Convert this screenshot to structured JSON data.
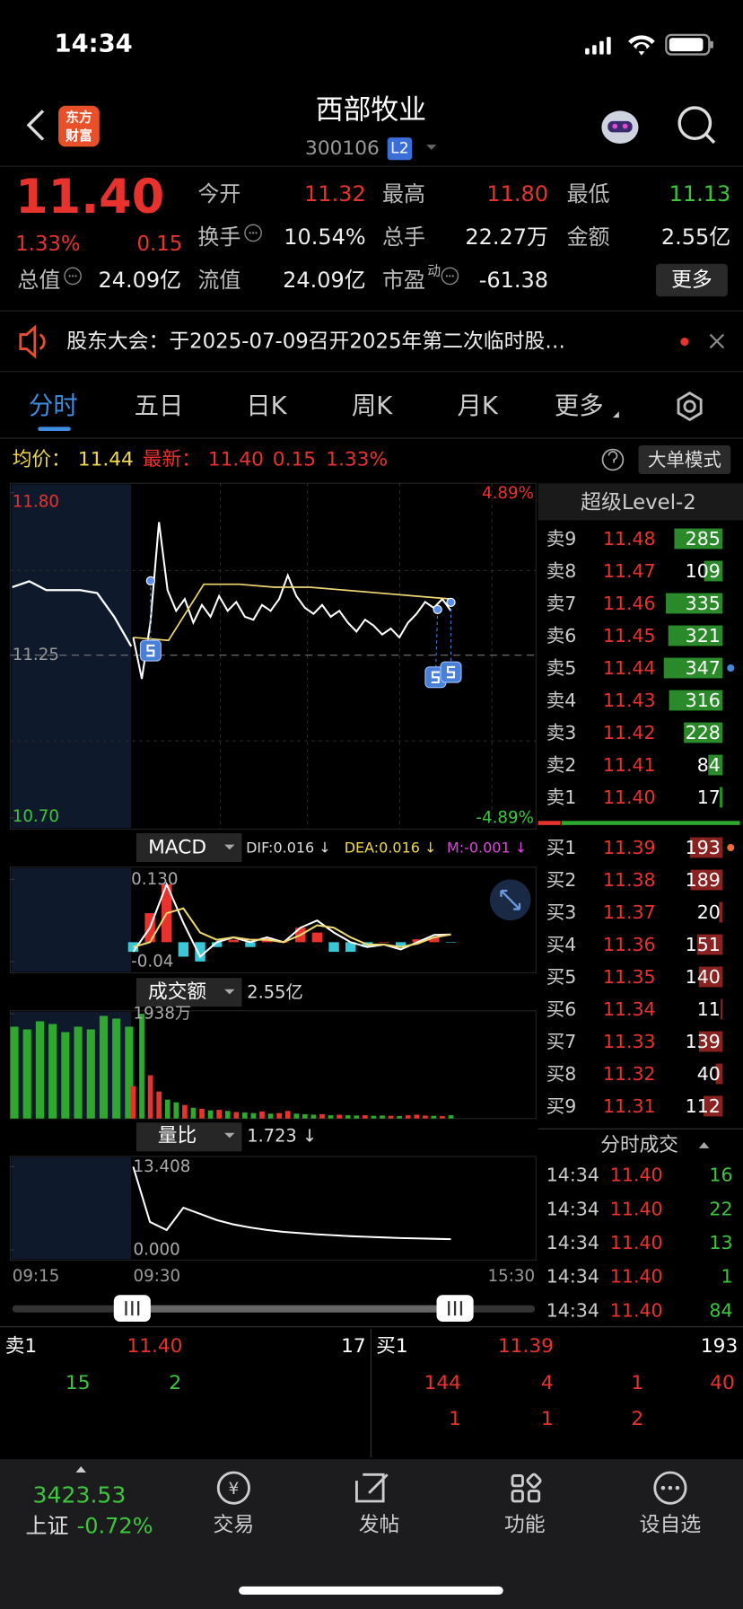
{
  "status": {
    "time": "14:34"
  },
  "header": {
    "logo": [
      "东方",
      "财富"
    ],
    "title": "西部牧业",
    "code": "300106",
    "badge": "L2"
  },
  "quote": {
    "price": "11.40",
    "change_pct": "1.33%",
    "change": "0.15",
    "fields": [
      {
        "label": "今开",
        "value": "11.32",
        "color": "#e8322e"
      },
      {
        "label": "最高",
        "value": "11.80",
        "color": "#e8322e"
      },
      {
        "label": "最低",
        "value": "11.13",
        "color": "#3cc63c"
      },
      {
        "label": "换手",
        "value": "10.54%"
      },
      {
        "label": "总手",
        "value": "22.27万"
      },
      {
        "label": "金额",
        "value": "2.55亿"
      },
      {
        "label": "总值",
        "value": "24.09亿"
      },
      {
        "label": "流值",
        "value": "24.09亿"
      },
      {
        "label": "市盈",
        "sup": "动",
        "value": "-61.38"
      }
    ],
    "more": "更多"
  },
  "notice": {
    "text": "股东大会：于2025-07-09召开2025年第二次临时股…"
  },
  "tabs": [
    "分时",
    "五日",
    "日K",
    "周K",
    "月K",
    "更多"
  ],
  "info": {
    "avg_label": "均价：",
    "avg": "11.44",
    "latest_label": "最新：",
    "latest": "11.40",
    "change": "0.15",
    "change_pct": "1.33%",
    "mode": "大单模式"
  },
  "intraday": {
    "ylim": [
      10.7,
      11.8
    ],
    "yticks": [
      {
        "value": 11.8,
        "label": "11.80"
      },
      11.25,
      {
        "value": 10.7,
        "label": "10.70"
      }
    ],
    "pct_labels": [
      "4.89%",
      "-4.89%"
    ],
    "pre_price": [
      11.48,
      11.5,
      11.47,
      11.47,
      11.47,
      11.46,
      11.38,
      11.28
    ],
    "price": [
      11.31,
      11.17,
      11.36,
      11.7,
      11.47,
      11.4,
      11.44,
      11.36,
      11.42,
      11.38,
      11.45,
      11.4,
      11.43,
      11.38,
      11.37,
      11.42,
      11.4,
      11.44,
      11.52,
      11.45,
      11.41,
      11.39,
      11.42,
      11.38,
      11.4,
      11.36,
      11.33,
      11.37,
      11.35,
      11.32,
      11.34,
      11.31,
      11.36,
      11.39,
      11.43,
      11.41,
      11.44,
      11.4
    ],
    "avg": [
      11.31,
      11.3,
      11.49,
      11.49,
      11.48,
      11.48,
      11.47,
      11.46,
      11.45,
      11.44
    ]
  },
  "times": [
    "09:15",
    "09:30",
    "15:30"
  ],
  "macd": {
    "name": "MACD",
    "dif": "DIF:0.016 ↓",
    "dea": "DEA:0.016 ↓",
    "m": "M:-0.001 ↓",
    "ylim": [
      -0.04,
      0.13
    ],
    "yticks": [
      {
        "value": 0.13,
        "label": "0.130"
      },
      -0.04
    ],
    "dif_values": [
      -0.02,
      0.03,
      0.12,
      0.04,
      -0.03,
      0.0,
      0.01,
      0.0,
      0.01,
      0.0,
      0.03,
      0.045,
      0.02,
      0.0,
      -0.01,
      -0.005,
      -0.015,
      0.0,
      0.015,
      0.016
    ],
    "dea_values": [
      -0.01,
      0.0,
      0.06,
      0.07,
      0.02,
      0.005,
      0.01,
      0.005,
      0.005,
      0.0,
      0.015,
      0.035,
      0.03,
      0.01,
      -0.005,
      -0.005,
      -0.01,
      -0.003,
      0.01,
      0.016
    ],
    "hist": [
      -0.02,
      0.06,
      0.12,
      -0.03,
      -0.04,
      -0.01,
      0.005,
      -0.01,
      0.01,
      0.0,
      0.03,
      0.02,
      -0.02,
      -0.02,
      -0.01,
      0.0,
      -0.01,
      0.006,
      0.01,
      -0.001
    ]
  },
  "turnover": {
    "name": "成交额",
    "total": "2.55亿",
    "ylim": [
      0,
      1938
    ],
    "yticks": [
      {
        "value": 1938,
        "label": "1938万"
      }
    ],
    "pre_values": [
      1700,
      1650,
      1800,
      1750,
      1600,
      1700,
      1650,
      1900,
      1850,
      1700
    ],
    "values": [
      600,
      1938,
      800,
      500,
      350,
      300,
      250,
      200,
      180,
      150,
      160,
      140,
      120,
      110,
      100,
      130,
      90,
      100,
      140,
      90,
      80,
      70,
      80,
      60,
      70,
      60,
      55,
      60,
      50,
      55,
      50,
      45,
      60,
      70,
      55,
      50,
      45,
      60
    ]
  },
  "ratio": {
    "name": "量比",
    "current": "1.723 ↓",
    "ylim": [
      0,
      13.408
    ],
    "yticks": [
      13.408,
      {
        "value": 0,
        "label": "0.000"
      }
    ],
    "values": [
      13.408,
      4.5,
      3.2,
      6.8,
      5.8,
      4.8,
      4.1,
      3.6,
      3.2,
      2.9,
      2.7,
      2.5,
      2.35,
      2.2,
      2.1,
      2.0,
      1.9,
      1.85,
      1.78,
      1.723
    ]
  },
  "orderbook": {
    "title": "超级Level-2",
    "asks": [
      {
        "label": "卖9",
        "price": "11.48",
        "volume": 285
      },
      {
        "label": "卖8",
        "price": "11.47",
        "volume": 109
      },
      {
        "label": "卖7",
        "price": "11.46",
        "volume": 335
      },
      {
        "label": "卖6",
        "price": "11.45",
        "volume": 321
      },
      {
        "label": "卖5",
        "price": "11.44",
        "volume": 347
      },
      {
        "label": "卖4",
        "price": "11.43",
        "volume": 316
      },
      {
        "label": "卖3",
        "price": "11.42",
        "volume": 228
      },
      {
        "label": "卖2",
        "price": "11.41",
        "volume": 84
      },
      {
        "label": "卖1",
        "price": "11.40",
        "volume": 17
      }
    ],
    "bids": [
      {
        "label": "买1",
        "price": "11.39",
        "volume": 193
      },
      {
        "label": "买2",
        "price": "11.38",
        "volume": 189
      },
      {
        "label": "买3",
        "price": "11.37",
        "volume": 20
      },
      {
        "label": "买4",
        "price": "11.36",
        "volume": 151
      },
      {
        "label": "买5",
        "price": "11.35",
        "volume": 140
      },
      {
        "label": "买6",
        "price": "11.34",
        "volume": 11
      },
      {
        "label": "买7",
        "price": "11.33",
        "volume": 139
      },
      {
        "label": "买8",
        "price": "11.32",
        "volume": 40
      },
      {
        "label": "买9",
        "price": "11.31",
        "volume": 112
      }
    ]
  },
  "trades": {
    "title": "分时成交",
    "rows": [
      {
        "time": "14:34",
        "price": "11.40",
        "volume": 16
      },
      {
        "time": "14:34",
        "price": "11.40",
        "volume": 22
      },
      {
        "time": "14:34",
        "price": "11.40",
        "volume": 13
      },
      {
        "time": "14:34",
        "price": "11.40",
        "volume": 1
      },
      {
        "time": "14:34",
        "price": "11.40",
        "volume": 84
      }
    ]
  },
  "queue": {
    "ask": {
      "label": "卖1",
      "price": "11.40",
      "volume": 17,
      "orders": [
        15,
        2
      ]
    },
    "bid": {
      "label": "买1",
      "price": "11.39",
      "volume": 193,
      "orders": [
        144,
        4,
        1,
        40,
        1,
        1,
        2
      ]
    }
  },
  "nav": {
    "index_value": "3423.53",
    "index_name": "上证",
    "index_change": "-0.72%",
    "items": [
      "交易",
      "发帖",
      "功能",
      "设自选"
    ]
  }
}
